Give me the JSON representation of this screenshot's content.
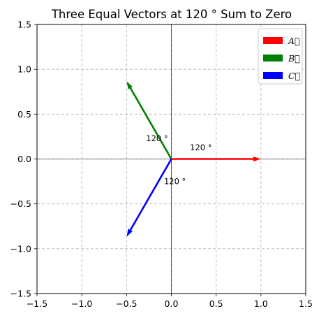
{
  "chart_data": {
    "type": "vector",
    "title": "Three Equal Vectors at 120 ° Sum to Zero",
    "xlim": [
      -1.5,
      1.5
    ],
    "ylim": [
      -1.5,
      1.5
    ],
    "x_ticks": [
      -1.5,
      -1.0,
      -0.5,
      0.0,
      0.5,
      1.0,
      1.5
    ],
    "y_ticks": [
      -1.5,
      -1.0,
      -0.5,
      0.0,
      0.5,
      1.0,
      1.5
    ],
    "x_tick_labels": [
      "−1.5",
      "−1.0",
      "−0.5",
      "0.0",
      "0.5",
      "1.0",
      "1.5"
    ],
    "y_tick_labels": [
      "−1.5",
      "−1.0",
      "−0.5",
      "0.0",
      "0.5",
      "1.0",
      "1.5"
    ],
    "grid": true,
    "legend_position": "top-right",
    "vectors": [
      {
        "name": "A⃗",
        "color": "#ff0000",
        "x0": 0,
        "y0": 0,
        "dx": 1.0,
        "dy": 0.0
      },
      {
        "name": "B⃗",
        "color": "#008000",
        "x0": 0,
        "y0": 0,
        "dx": -0.5,
        "dy": 0.866
      },
      {
        "name": "C⃗",
        "color": "#0000ff",
        "x0": 0,
        "y0": 0,
        "dx": -0.5,
        "dy": -0.866
      }
    ],
    "annotations": [
      {
        "text": "120 °",
        "x": 0.33,
        "y": 0.13
      },
      {
        "text": "120 °",
        "x": -0.16,
        "y": 0.23
      },
      {
        "text": "120 °",
        "x": 0.04,
        "y": -0.25
      }
    ]
  }
}
